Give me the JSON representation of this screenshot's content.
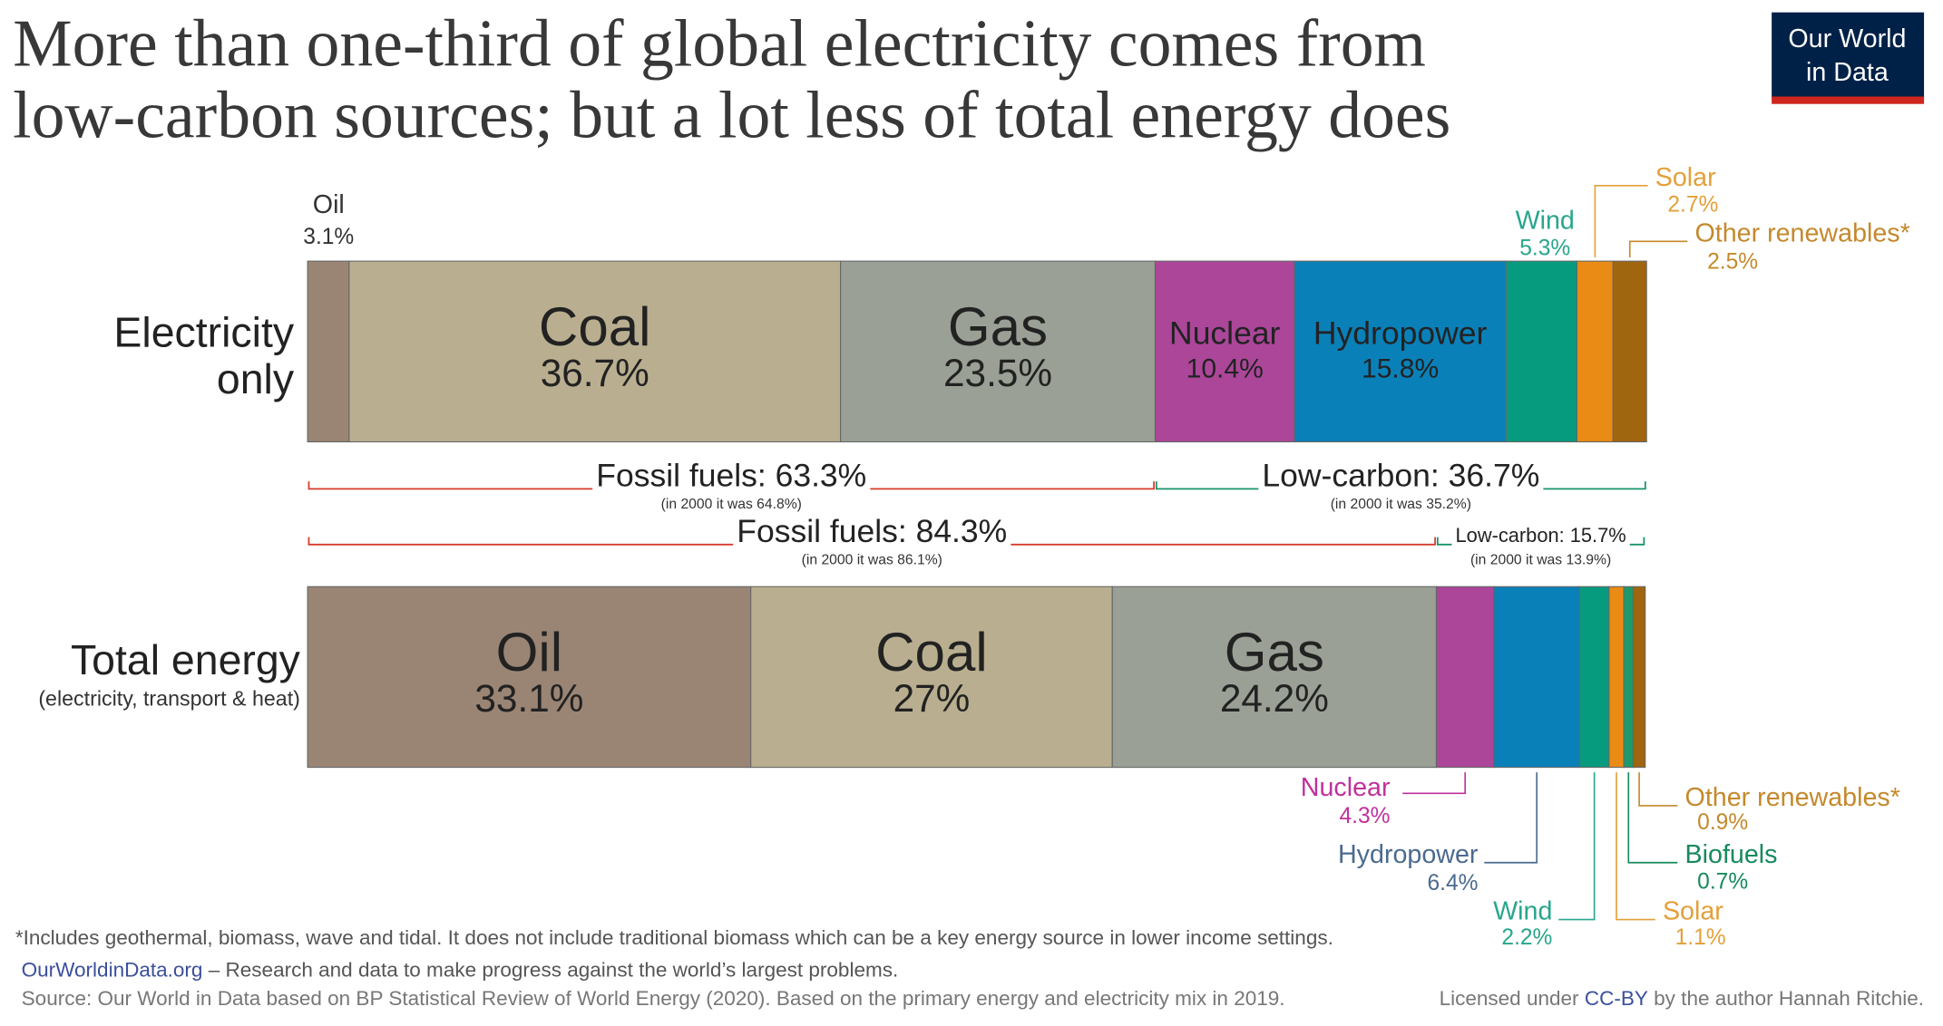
{
  "chart_data": {
    "type": "stacked-bar",
    "title": [
      "More than one-third of global electricity comes from",
      "low-carbon sources; but a lot less of total energy does"
    ],
    "logo": [
      "Our World",
      "in Data"
    ],
    "categories": [
      "Electricity only",
      "Total energy"
    ],
    "category_notes": [
      null,
      "(electricity, transport & heat)"
    ],
    "xlim": [
      0,
      100
    ],
    "series": [
      {
        "name": "Oil",
        "color": "#9a8575",
        "label_color": "#333333",
        "values": [
          3.1,
          33.1
        ],
        "value_labels": [
          "3.1%",
          "33.1%"
        ]
      },
      {
        "name": "Coal",
        "color": "#b9af90",
        "label_color": "#333333",
        "values": [
          36.7,
          27
        ],
        "value_labels": [
          "36.7%",
          "27%"
        ]
      },
      {
        "name": "Gas",
        "color": "#9aa095",
        "label_color": "#333333",
        "values": [
          23.5,
          24.2
        ],
        "value_labels": [
          "23.5%",
          "24.2%"
        ]
      },
      {
        "name": "Nuclear",
        "color": "#ab4699",
        "label_color": "#c0319c",
        "values": [
          10.4,
          4.3
        ],
        "value_labels": [
          "10.4%",
          "4.3%"
        ]
      },
      {
        "name": "Hydropower",
        "color": "#0a80b8",
        "label_color": "#4b6a8f",
        "values": [
          15.8,
          6.4
        ],
        "value_labels": [
          "15.8%",
          "6.4%"
        ]
      },
      {
        "name": "Wind",
        "color": "#069b7e",
        "label_color": "#28a68c",
        "values": [
          5.3,
          2.2
        ],
        "value_labels": [
          "5.3%",
          "2.2%"
        ]
      },
      {
        "name": "Solar",
        "color": "#e98b14",
        "label_color": "#e3a03a",
        "values": [
          2.7,
          1.1
        ],
        "value_labels": [
          "2.7%",
          "1.1%"
        ]
      },
      {
        "name": "Biofuels",
        "color": "#1c9a6c",
        "label_color": "#178a5c",
        "values": [
          null,
          0.7
        ],
        "value_labels": [
          null,
          "0.7%"
        ]
      },
      {
        "name": "Other renewables*",
        "color": "#a0650f",
        "label_color": "#c4892c",
        "values": [
          2.5,
          0.9
        ],
        "value_labels": [
          "2.5%",
          "0.9%"
        ]
      }
    ],
    "groups": [
      [
        {
          "label": "Fossil fuels: 63.3%",
          "note": "(in 2000 it was 64.8%)",
          "color": "#d73c2c"
        },
        {
          "label": "Low-carbon: 36.7%",
          "note": "(in 2000 it was 35.2%)",
          "color": "#18936e"
        }
      ],
      [
        {
          "label": "Fossil fuels: 84.3%",
          "note": "(in 2000 it was 86.1%)",
          "color": "#d73c2c"
        },
        {
          "label": "Low-carbon: 15.7%",
          "note": "(in 2000 it was 13.9%)",
          "color": "#18936e"
        }
      ]
    ],
    "footnote": "*Includes geothermal, biomass, wave and tidal. It does not include traditional biomass which can be a key energy source in lower income settings.",
    "site": "OurWorldinData.org",
    "site_tagline": "– Research and data to make progress against the world’s largest problems.",
    "source": "Source: Our World in Data based on BP Statistical Review of World Energy (2020). Based on the primary energy and electricity mix in 2019.",
    "license_prefix": "Licensed under",
    "license_link": "CC-BY",
    "license_suffix": "by the author Hannah Ritchie."
  }
}
